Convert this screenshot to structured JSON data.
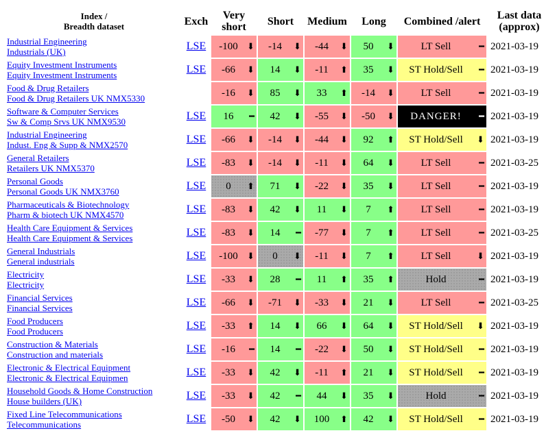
{
  "headers": {
    "index_line1": "Index /",
    "index_line2": "Breadth dataset",
    "exch": "Exch",
    "very_short_line1": "Very",
    "very_short_line2": "short",
    "short": "Short",
    "medium": "Medium",
    "long": "Long",
    "combined": "Combined /alert",
    "last_line1": "Last data",
    "last_line2": "(approx)"
  },
  "rows": [
    {
      "name": "Industrial Engineering",
      "dataset": "Industrials (UK)",
      "exch": "LSE",
      "vs": {
        "v": "-100",
        "t": "⬇",
        "c": "red"
      },
      "s": {
        "v": "-14",
        "t": "⬇",
        "c": "red"
      },
      "m": {
        "v": "-44",
        "t": "⬇",
        "c": "red"
      },
      "l": {
        "v": "50",
        "t": "⬇",
        "c": "green"
      },
      "comb": {
        "v": "LT Sell",
        "t": "━",
        "c": "red"
      },
      "date": "2021-03-19"
    },
    {
      "name": "Equity Investment Instruments",
      "dataset": "Equity Investment Instruments",
      "exch": "LSE",
      "vs": {
        "v": "-66",
        "t": "⬇",
        "c": "red"
      },
      "s": {
        "v": "14",
        "t": "⬇",
        "c": "green"
      },
      "m": {
        "v": "-11",
        "t": "⬆",
        "c": "red"
      },
      "l": {
        "v": "35",
        "t": "⬇",
        "c": "green"
      },
      "comb": {
        "v": "ST Hold/Sell",
        "t": "━",
        "c": "yellow"
      },
      "date": "2021-03-19"
    },
    {
      "name": "Food & Drug Retailers",
      "dataset": "Food & Drug Retailers UK NMX5330",
      "exch": "",
      "vs": {
        "v": "-16",
        "t": "⬇",
        "c": "red"
      },
      "s": {
        "v": "85",
        "t": "⬇",
        "c": "green"
      },
      "m": {
        "v": "33",
        "t": "⬆",
        "c": "green"
      },
      "l": {
        "v": "-14",
        "t": "⬇",
        "c": "red"
      },
      "comb": {
        "v": "LT Sell",
        "t": "━",
        "c": "red"
      },
      "date": "2021-03-19"
    },
    {
      "name": "Software & Computer Services",
      "dataset": "Sw & Comp Srvs UK NMX9530",
      "exch": "LSE",
      "vs": {
        "v": "16",
        "t": "━",
        "c": "green"
      },
      "s": {
        "v": "42",
        "t": "⬇",
        "c": "green"
      },
      "m": {
        "v": "-55",
        "t": "⬇",
        "c": "red"
      },
      "l": {
        "v": "-50",
        "t": "⬇",
        "c": "red"
      },
      "comb": {
        "v": "DANGER!",
        "t": "━",
        "c": "black"
      },
      "date": "2021-03-19"
    },
    {
      "name": "Industrial Engineering",
      "dataset": "Indust. Eng & Supp & NMX2570",
      "exch": "LSE",
      "vs": {
        "v": "-66",
        "t": "⬇",
        "c": "red"
      },
      "s": {
        "v": "-14",
        "t": "⬇",
        "c": "red"
      },
      "m": {
        "v": "-44",
        "t": "⬇",
        "c": "red"
      },
      "l": {
        "v": "92",
        "t": "⬆",
        "c": "green"
      },
      "comb": {
        "v": "ST Hold/Sell",
        "t": "⬇",
        "c": "yellow"
      },
      "date": "2021-03-19"
    },
    {
      "name": "General Retailers",
      "dataset": "Retailers UK NMX5370",
      "exch": "LSE",
      "vs": {
        "v": "-83",
        "t": "⬇",
        "c": "red"
      },
      "s": {
        "v": "-14",
        "t": "⬇",
        "c": "red"
      },
      "m": {
        "v": "-11",
        "t": "⬇",
        "c": "red"
      },
      "l": {
        "v": "64",
        "t": "⬇",
        "c": "green"
      },
      "comb": {
        "v": "LT Sell",
        "t": "━",
        "c": "red"
      },
      "date": "2021-03-25"
    },
    {
      "name": "Personal Goods",
      "dataset": "Personal Goods UK NMX3760",
      "exch": "LSE",
      "vs": {
        "v": "0",
        "t": "⬆",
        "c": "grey"
      },
      "s": {
        "v": "71",
        "t": "⬇",
        "c": "green"
      },
      "m": {
        "v": "-22",
        "t": "⬇",
        "c": "red"
      },
      "l": {
        "v": "35",
        "t": "⬇",
        "c": "green"
      },
      "comb": {
        "v": "LT Sell",
        "t": "━",
        "c": "red"
      },
      "date": "2021-03-19"
    },
    {
      "name": "Pharmaceuticals & Biotechnology",
      "dataset": "Pharm & biotech UK NMX4570",
      "exch": "LSE",
      "vs": {
        "v": "-83",
        "t": "⬇",
        "c": "red"
      },
      "s": {
        "v": "42",
        "t": "⬇",
        "c": "green"
      },
      "m": {
        "v": "11",
        "t": "⬇",
        "c": "green"
      },
      "l": {
        "v": "7",
        "t": "⬆",
        "c": "green"
      },
      "comb": {
        "v": "LT Sell",
        "t": "━",
        "c": "red"
      },
      "date": "2021-03-19"
    },
    {
      "name": "Health Care Equipment & Services",
      "dataset": "Health Care Equipment & Services",
      "exch": "LSE",
      "vs": {
        "v": "-83",
        "t": "⬇",
        "c": "red"
      },
      "s": {
        "v": "14",
        "t": "━",
        "c": "green"
      },
      "m": {
        "v": "-77",
        "t": "⬇",
        "c": "red"
      },
      "l": {
        "v": "7",
        "t": "⬆",
        "c": "green"
      },
      "comb": {
        "v": "LT Sell",
        "t": "━",
        "c": "red"
      },
      "date": "2021-03-25"
    },
    {
      "name": "General Industrials",
      "dataset": "General industrials",
      "exch": "LSE",
      "vs": {
        "v": "-100",
        "t": "⬇",
        "c": "red"
      },
      "s": {
        "v": "0",
        "t": "⬇",
        "c": "grey"
      },
      "m": {
        "v": "-11",
        "t": "⬇",
        "c": "red"
      },
      "l": {
        "v": "7",
        "t": "⬆",
        "c": "green"
      },
      "comb": {
        "v": "LT Sell",
        "t": "⬇",
        "c": "red"
      },
      "date": "2021-03-19"
    },
    {
      "name": "Electricity",
      "dataset": "Electricity",
      "exch": "LSE",
      "vs": {
        "v": "-33",
        "t": "⬇",
        "c": "red"
      },
      "s": {
        "v": "28",
        "t": "━",
        "c": "green"
      },
      "m": {
        "v": "11",
        "t": "⬆",
        "c": "green"
      },
      "l": {
        "v": "35",
        "t": "⬆",
        "c": "green"
      },
      "comb": {
        "v": "Hold",
        "t": "━",
        "c": "grey"
      },
      "date": "2021-03-19"
    },
    {
      "name": "Financial Services",
      "dataset": "Financial Services",
      "exch": "LSE",
      "vs": {
        "v": "-66",
        "t": "⬇",
        "c": "red"
      },
      "s": {
        "v": "-71",
        "t": "⬇",
        "c": "red"
      },
      "m": {
        "v": "-33",
        "t": "⬇",
        "c": "red"
      },
      "l": {
        "v": "21",
        "t": "⬇",
        "c": "green"
      },
      "comb": {
        "v": "LT Sell",
        "t": "━",
        "c": "red"
      },
      "date": "2021-03-25"
    },
    {
      "name": "Food Producers",
      "dataset": "Food Producers",
      "exch": "LSE",
      "vs": {
        "v": "-33",
        "t": "⬆",
        "c": "red"
      },
      "s": {
        "v": "14",
        "t": "⬇",
        "c": "green"
      },
      "m": {
        "v": "66",
        "t": "⬇",
        "c": "green"
      },
      "l": {
        "v": "64",
        "t": "⬇",
        "c": "green"
      },
      "comb": {
        "v": "ST Hold/Sell",
        "t": "⬇",
        "c": "yellow"
      },
      "date": "2021-03-19"
    },
    {
      "name": "Construction & Materials",
      "dataset": "Construction and materials",
      "exch": "LSE",
      "vs": {
        "v": "-16",
        "t": "━",
        "c": "red"
      },
      "s": {
        "v": "14",
        "t": "━",
        "c": "green"
      },
      "m": {
        "v": "-22",
        "t": "⬇",
        "c": "red"
      },
      "l": {
        "v": "50",
        "t": "⬇",
        "c": "green"
      },
      "comb": {
        "v": "ST Hold/Sell",
        "t": "━",
        "c": "yellow"
      },
      "date": "2021-03-19"
    },
    {
      "name": "Electronic & Electrical Equipment",
      "dataset": "Electronic & Electrical Equipmen",
      "exch": "LSE",
      "vs": {
        "v": "-33",
        "t": "⬇",
        "c": "red"
      },
      "s": {
        "v": "42",
        "t": "⬇",
        "c": "green"
      },
      "m": {
        "v": "-11",
        "t": "⬆",
        "c": "red"
      },
      "l": {
        "v": "21",
        "t": "⬇",
        "c": "green"
      },
      "comb": {
        "v": "ST Hold/Sell",
        "t": "━",
        "c": "yellow"
      },
      "date": "2021-03-19"
    },
    {
      "name": "Household Goods & Home Construction",
      "dataset": "House builders (UK)",
      "exch": "LSE",
      "vs": {
        "v": "-33",
        "t": "⬇",
        "c": "red"
      },
      "s": {
        "v": "42",
        "t": "━",
        "c": "green"
      },
      "m": {
        "v": "44",
        "t": "⬇",
        "c": "green"
      },
      "l": {
        "v": "35",
        "t": "⬇",
        "c": "green"
      },
      "comb": {
        "v": "Hold",
        "t": "━",
        "c": "grey"
      },
      "date": "2021-03-19"
    },
    {
      "name": "Fixed Line Telecommunications",
      "dataset": "Telecommunications",
      "exch": "LSE",
      "vs": {
        "v": "-50",
        "t": "⬇",
        "c": "red"
      },
      "s": {
        "v": "42",
        "t": "⬇",
        "c": "green"
      },
      "m": {
        "v": "100",
        "t": "⬆",
        "c": "green"
      },
      "l": {
        "v": "42",
        "t": "⬇",
        "c": "green"
      },
      "comb": {
        "v": "ST Hold/Sell",
        "t": "━",
        "c": "yellow"
      },
      "date": "2021-03-19"
    }
  ]
}
